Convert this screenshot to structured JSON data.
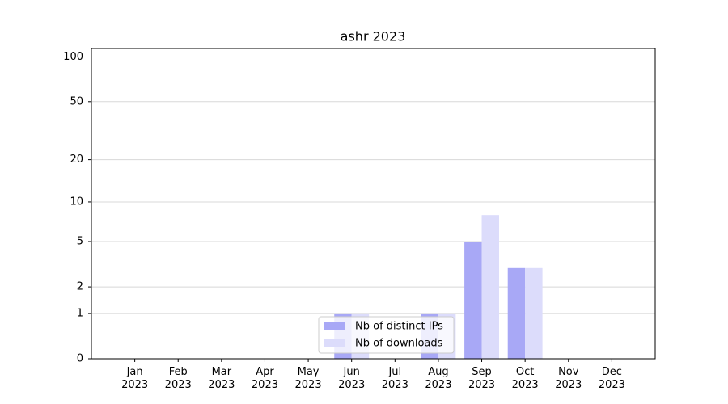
{
  "chart_data": {
    "type": "bar",
    "title": "ashr 2023",
    "categories": [
      "Jan 2023",
      "Feb 2023",
      "Mar 2023",
      "Apr 2023",
      "May 2023",
      "Jun 2023",
      "Jul 2023",
      "Aug 2023",
      "Sep 2023",
      "Oct 2023",
      "Nov 2023",
      "Dec 2023"
    ],
    "series": [
      {
        "name": "Nb of distinct IPs",
        "color": "#a8a8f6",
        "values": [
          0,
          0,
          0,
          0,
          0,
          1,
          0,
          1,
          5,
          3,
          0,
          0
        ]
      },
      {
        "name": "Nb of downloads",
        "color": "#dcdcfb",
        "values": [
          0,
          0,
          0,
          0,
          0,
          1,
          0,
          1,
          8,
          3,
          0,
          0
        ]
      }
    ],
    "yscale": "log1p",
    "ylim": [
      0,
      114
    ],
    "yticks": [
      0,
      1,
      2,
      5,
      10,
      20,
      50,
      100
    ],
    "grid": true,
    "legend": "lower center"
  }
}
